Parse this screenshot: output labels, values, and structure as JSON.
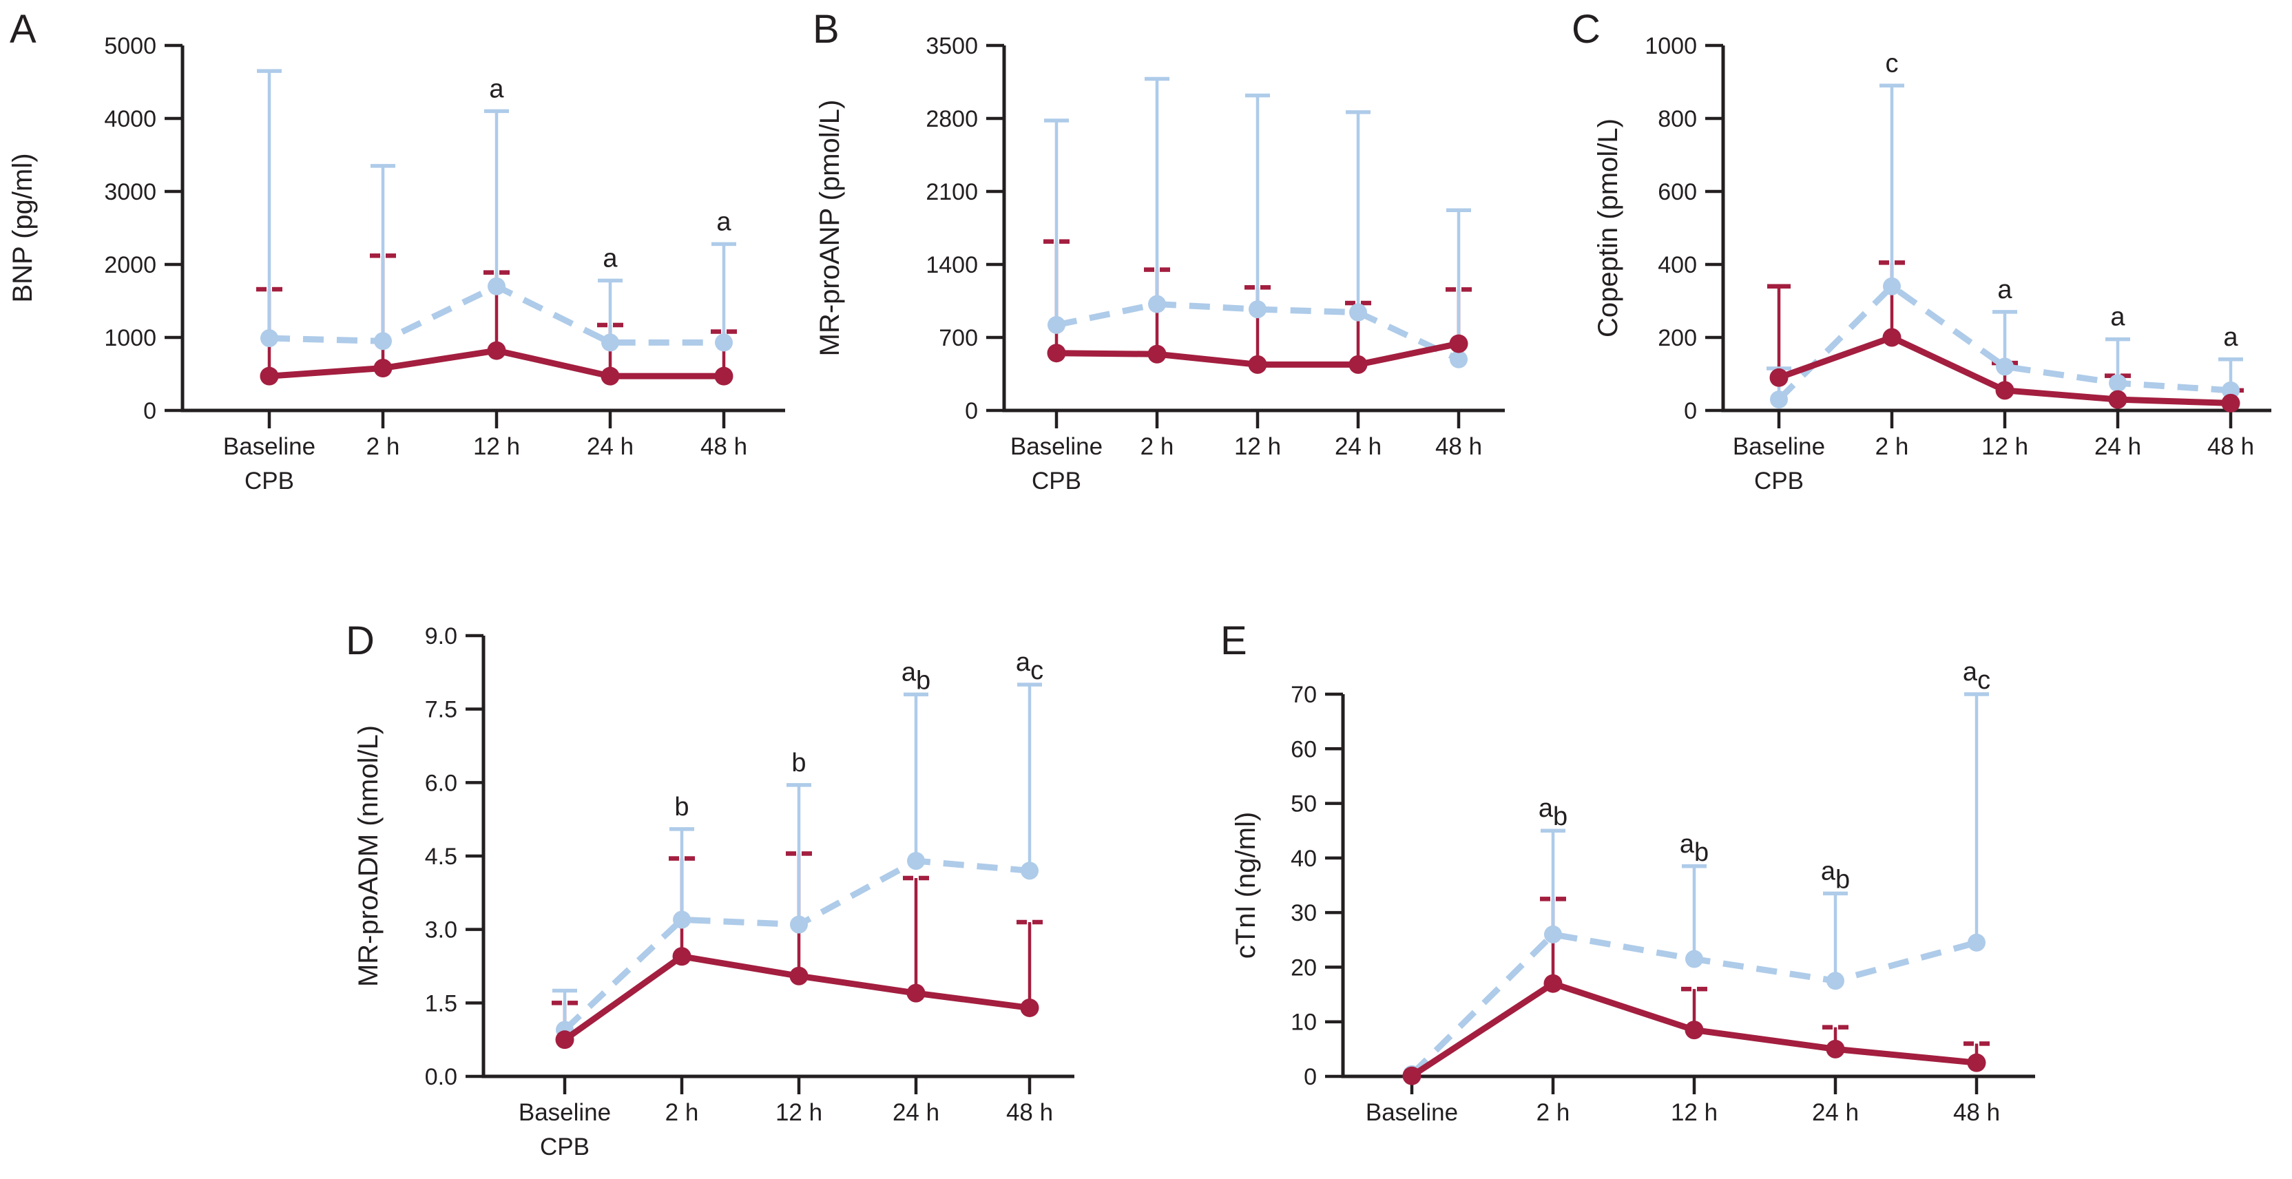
{
  "figure": {
    "background": "#ffffff",
    "panel_order": [
      "A",
      "B",
      "C",
      "D",
      "E"
    ]
  },
  "colors": {
    "series_dashed_blue": "#aecbe9",
    "series_solid_red": "#a31e3f",
    "axis_and_text": "#231f20"
  },
  "chart_data": [
    {
      "type": "line",
      "panel_label": "A",
      "ylabel": "BNP (pg/ml)",
      "ylim": [
        0,
        5000
      ],
      "ytick_labels": [
        "0",
        "1000",
        "2000",
        "3000",
        "4000",
        "5000"
      ],
      "categories": [
        "Baseline",
        "2 h",
        "12 h",
        "24 h",
        "48 h"
      ],
      "x_sub_label": "CPB",
      "grid": false,
      "legend": "none",
      "series": [
        {
          "name": "dashed-blue",
          "style": "dashed",
          "values": [
            990,
            950,
            1700,
            930,
            930
          ],
          "upper": [
            4650,
            3350,
            4100,
            1780,
            2280
          ]
        },
        {
          "name": "solid-red",
          "style": "solid",
          "values": [
            470,
            580,
            820,
            470,
            470
          ],
          "upper": [
            1660,
            2120,
            1890,
            1170,
            1080
          ]
        }
      ],
      "sig_labels": [
        "",
        "",
        "a",
        "a",
        "a"
      ]
    },
    {
      "type": "line",
      "panel_label": "B",
      "ylabel": "MR-proANP (pmol/L)",
      "ylim": [
        0,
        3500
      ],
      "ytick_labels": [
        "0",
        "700",
        "1400",
        "2100",
        "2800",
        "3500"
      ],
      "categories": [
        "Baseline",
        "2 h",
        "12 h",
        "24 h",
        "48 h"
      ],
      "x_sub_label": "CPB",
      "grid": false,
      "legend": "none",
      "series": [
        {
          "name": "dashed-blue",
          "style": "dashed",
          "values": [
            820,
            1020,
            970,
            940,
            490
          ],
          "upper": [
            2780,
            3180,
            3020,
            2860,
            1920
          ]
        },
        {
          "name": "solid-red",
          "style": "solid",
          "values": [
            550,
            540,
            440,
            440,
            640
          ],
          "upper": [
            1620,
            1350,
            1180,
            1030,
            1160
          ]
        }
      ],
      "sig_labels": [
        "",
        "",
        "",
        "",
        ""
      ]
    },
    {
      "type": "line",
      "panel_label": "C",
      "ylabel": "Copeptin (pmol/L)",
      "ylim": [
        0,
        1000
      ],
      "ytick_labels": [
        "0",
        "200",
        "400",
        "600",
        "800",
        "1000"
      ],
      "categories": [
        "Baseline",
        "2 h",
        "12 h",
        "24 h",
        "48 h"
      ],
      "x_sub_label": "CPB",
      "grid": false,
      "legend": "none",
      "series": [
        {
          "name": "dashed-blue",
          "style": "dashed",
          "values": [
            30,
            340,
            120,
            75,
            55
          ],
          "upper": [
            115,
            890,
            270,
            195,
            140
          ]
        },
        {
          "name": "solid-red",
          "style": "solid",
          "values": [
            90,
            200,
            55,
            30,
            20
          ],
          "upper": [
            340,
            405,
            130,
            95,
            55
          ]
        }
      ],
      "sig_labels": [
        "",
        "c",
        "a",
        "a",
        "a"
      ]
    },
    {
      "type": "line",
      "panel_label": "D",
      "ylabel": "MR-proADM (nmol/L)",
      "ylim": [
        0,
        9
      ],
      "ytick_labels": [
        "0.0",
        "1.5",
        "3.0",
        "4.5",
        "6.0",
        "7.5",
        "9.0"
      ],
      "categories": [
        "Baseline",
        "2 h",
        "12 h",
        "24 h",
        "48 h"
      ],
      "x_sub_label": "CPB",
      "grid": false,
      "legend": "none",
      "series": [
        {
          "name": "dashed-blue",
          "style": "dashed",
          "values": [
            0.95,
            3.2,
            3.1,
            4.4,
            4.2
          ],
          "upper": [
            1.75,
            5.05,
            5.95,
            7.8,
            8.0
          ]
        },
        {
          "name": "solid-red",
          "style": "solid",
          "values": [
            0.75,
            2.45,
            2.05,
            1.7,
            1.4
          ],
          "upper": [
            1.5,
            4.45,
            4.55,
            4.05,
            3.15
          ]
        }
      ],
      "sig_labels": [
        "",
        "b",
        "b",
        "ab",
        "ac"
      ]
    },
    {
      "type": "line",
      "panel_label": "E",
      "ylabel": "cTnI (ng/ml)",
      "ylim": [
        0,
        70
      ],
      "ytick_labels": [
        "0",
        "10",
        "20",
        "30",
        "40",
        "50",
        "60",
        "70"
      ],
      "categories": [
        "Baseline",
        "2 h",
        "12 h",
        "24 h",
        "48  h"
      ],
      "x_sub_label": "",
      "grid": false,
      "legend": "none",
      "series": [
        {
          "name": "dashed-blue",
          "style": "dashed",
          "values": [
            0.4,
            26,
            21.5,
            17.5,
            24.5
          ],
          "upper": [
            null,
            45,
            38.5,
            33.5,
            70
          ]
        },
        {
          "name": "solid-red",
          "style": "solid",
          "values": [
            0.1,
            17,
            8.5,
            5,
            2.5
          ],
          "upper": [
            null,
            32.5,
            16,
            9,
            6
          ]
        }
      ],
      "sig_labels": [
        "",
        "ab",
        "ab",
        "ab",
        "ac"
      ]
    }
  ]
}
